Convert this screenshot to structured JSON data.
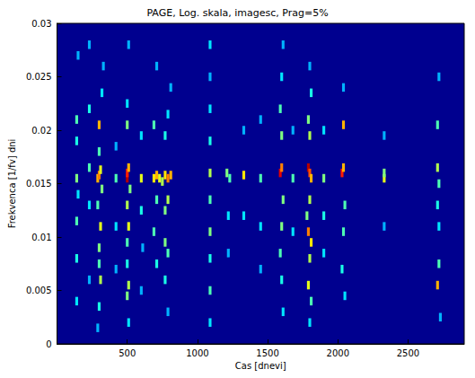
{
  "chart_data": {
    "type": "heatmap",
    "title": "PAGE, Log. skala, imagesc, Prag=5%",
    "xlabel": "Cas [dnevi]",
    "ylabel": "Frekvenca [1/fv] dni",
    "xlim": [
      0,
      2900
    ],
    "ylim": [
      0,
      0.03
    ],
    "xticks": [
      500,
      1000,
      1500,
      2000,
      2500
    ],
    "yticks": [
      0,
      0.005,
      0.01,
      0.015,
      0.02,
      0.025,
      0.03
    ],
    "cell_width": 20,
    "cell_height": 0.0008,
    "color_range": [
      0,
      1
    ],
    "cells": [
      [
        140,
        0.004,
        0.35
      ],
      [
        140,
        0.008,
        0.4
      ],
      [
        140,
        0.0115,
        0.45
      ],
      [
        140,
        0.0155,
        0.5
      ],
      [
        140,
        0.019,
        0.4
      ],
      [
        140,
        0.021,
        0.45
      ],
      [
        150,
        0.027,
        0.3
      ],
      [
        150,
        0.014,
        0.35
      ],
      [
        230,
        0.006,
        0.3
      ],
      [
        230,
        0.013,
        0.35
      ],
      [
        230,
        0.0165,
        0.45
      ],
      [
        230,
        0.022,
        0.4
      ],
      [
        230,
        0.028,
        0.3
      ],
      [
        290,
        0.0155,
        0.7
      ],
      [
        300,
        0.0158,
        0.75
      ],
      [
        310,
        0.0163,
        0.6
      ],
      [
        300,
        0.0205,
        0.7
      ],
      [
        300,
        0.018,
        0.45
      ],
      [
        290,
        0.013,
        0.45
      ],
      [
        310,
        0.011,
        0.6
      ],
      [
        300,
        0.009,
        0.5
      ],
      [
        300,
        0.0075,
        0.45
      ],
      [
        310,
        0.006,
        0.55
      ],
      [
        300,
        0.0035,
        0.4
      ],
      [
        290,
        0.0015,
        0.3
      ],
      [
        320,
        0.0235,
        0.35
      ],
      [
        330,
        0.026,
        0.3
      ],
      [
        320,
        0.0145,
        0.5
      ],
      [
        420,
        0.0155,
        0.45
      ],
      [
        420,
        0.011,
        0.35
      ],
      [
        420,
        0.0185,
        0.3
      ],
      [
        420,
        0.007,
        0.3
      ],
      [
        500,
        0.0155,
        0.95
      ],
      [
        500,
        0.016,
        0.85
      ],
      [
        510,
        0.0165,
        0.7
      ],
      [
        500,
        0.013,
        0.55
      ],
      [
        510,
        0.011,
        0.6
      ],
      [
        500,
        0.0095,
        0.45
      ],
      [
        500,
        0.0075,
        0.4
      ],
      [
        510,
        0.0055,
        0.55
      ],
      [
        500,
        0.0045,
        0.5
      ],
      [
        510,
        0.002,
        0.35
      ],
      [
        500,
        0.0205,
        0.5
      ],
      [
        500,
        0.0225,
        0.35
      ],
      [
        510,
        0.028,
        0.3
      ],
      [
        520,
        0.0145,
        0.5
      ],
      [
        600,
        0.0155,
        0.6
      ],
      [
        600,
        0.0125,
        0.4
      ],
      [
        600,
        0.0195,
        0.35
      ],
      [
        610,
        0.009,
        0.3
      ],
      [
        600,
        0.005,
        0.3
      ],
      [
        690,
        0.0155,
        0.65
      ],
      [
        710,
        0.0158,
        0.7
      ],
      [
        730,
        0.0155,
        0.6
      ],
      [
        750,
        0.0152,
        0.55
      ],
      [
        770,
        0.0158,
        0.65
      ],
      [
        790,
        0.0155,
        0.75
      ],
      [
        810,
        0.0158,
        0.7
      ],
      [
        710,
        0.0135,
        0.45
      ],
      [
        770,
        0.0125,
        0.5
      ],
      [
        790,
        0.0135,
        0.55
      ],
      [
        690,
        0.0105,
        0.45
      ],
      [
        770,
        0.0095,
        0.5
      ],
      [
        790,
        0.0085,
        0.45
      ],
      [
        710,
        0.0075,
        0.4
      ],
      [
        770,
        0.006,
        0.4
      ],
      [
        690,
        0.0205,
        0.45
      ],
      [
        770,
        0.0195,
        0.4
      ],
      [
        790,
        0.0215,
        0.35
      ],
      [
        810,
        0.024,
        0.3
      ],
      [
        710,
        0.026,
        0.3
      ],
      [
        790,
        0.003,
        0.3
      ],
      [
        1090,
        0.002,
        0.35
      ],
      [
        1090,
        0.005,
        0.45
      ],
      [
        1090,
        0.008,
        0.4
      ],
      [
        1090,
        0.0105,
        0.5
      ],
      [
        1090,
        0.0135,
        0.45
      ],
      [
        1090,
        0.016,
        0.55
      ],
      [
        1090,
        0.019,
        0.4
      ],
      [
        1090,
        0.022,
        0.35
      ],
      [
        1090,
        0.025,
        0.3
      ],
      [
        1090,
        0.028,
        0.35
      ],
      [
        1210,
        0.016,
        0.5
      ],
      [
        1230,
        0.0155,
        0.45
      ],
      [
        1220,
        0.012,
        0.35
      ],
      [
        1220,
        0.0085,
        0.3
      ],
      [
        1330,
        0.0158,
        0.65
      ],
      [
        1330,
        0.012,
        0.35
      ],
      [
        1330,
        0.02,
        0.3
      ],
      [
        1450,
        0.0155,
        0.45
      ],
      [
        1450,
        0.011,
        0.35
      ],
      [
        1450,
        0.007,
        0.3
      ],
      [
        1450,
        0.021,
        0.3
      ],
      [
        1590,
        0.016,
        0.9
      ],
      [
        1600,
        0.0165,
        0.75
      ],
      [
        1610,
        0.0135,
        0.5
      ],
      [
        1600,
        0.011,
        0.5
      ],
      [
        1590,
        0.0085,
        0.45
      ],
      [
        1600,
        0.006,
        0.4
      ],
      [
        1610,
        0.003,
        0.35
      ],
      [
        1600,
        0.0195,
        0.5
      ],
      [
        1590,
        0.022,
        0.45
      ],
      [
        1600,
        0.025,
        0.35
      ],
      [
        1610,
        0.028,
        0.3
      ],
      [
        1680,
        0.0155,
        0.45
      ],
      [
        1680,
        0.0105,
        0.35
      ],
      [
        1680,
        0.02,
        0.3
      ],
      [
        1790,
        0.0165,
        0.95
      ],
      [
        1800,
        0.016,
        0.8
      ],
      [
        1810,
        0.0155,
        0.7
      ],
      [
        1800,
        0.0135,
        0.55
      ],
      [
        1790,
        0.0105,
        0.75
      ],
      [
        1810,
        0.0095,
        0.65
      ],
      [
        1800,
        0.008,
        0.55
      ],
      [
        1790,
        0.0055,
        0.6
      ],
      [
        1810,
        0.004,
        0.45
      ],
      [
        1800,
        0.002,
        0.35
      ],
      [
        1800,
        0.0195,
        0.55
      ],
      [
        1790,
        0.021,
        0.5
      ],
      [
        1810,
        0.0235,
        0.4
      ],
      [
        1800,
        0.026,
        0.3
      ],
      [
        1780,
        0.012,
        0.5
      ],
      [
        1900,
        0.0155,
        0.5
      ],
      [
        1900,
        0.012,
        0.4
      ],
      [
        1900,
        0.0085,
        0.35
      ],
      [
        1900,
        0.02,
        0.35
      ],
      [
        2030,
        0.016,
        0.85
      ],
      [
        2040,
        0.0165,
        0.7
      ],
      [
        2040,
        0.0205,
        0.7
      ],
      [
        2050,
        0.013,
        0.45
      ],
      [
        2040,
        0.0105,
        0.45
      ],
      [
        2030,
        0.007,
        0.4
      ],
      [
        2050,
        0.0045,
        0.35
      ],
      [
        2040,
        0.024,
        0.3
      ],
      [
        2330,
        0.0155,
        0.6
      ],
      [
        2330,
        0.016,
        0.5
      ],
      [
        2330,
        0.011,
        0.3
      ],
      [
        2330,
        0.0195,
        0.3
      ],
      [
        2710,
        0.0055,
        0.7
      ],
      [
        2720,
        0.0075,
        0.45
      ],
      [
        2710,
        0.0165,
        0.55
      ],
      [
        2720,
        0.015,
        0.45
      ],
      [
        2710,
        0.0205,
        0.45
      ],
      [
        2720,
        0.011,
        0.35
      ],
      [
        2730,
        0.0025,
        0.3
      ],
      [
        2720,
        0.025,
        0.3
      ],
      [
        2710,
        0.013,
        0.4
      ]
    ]
  }
}
